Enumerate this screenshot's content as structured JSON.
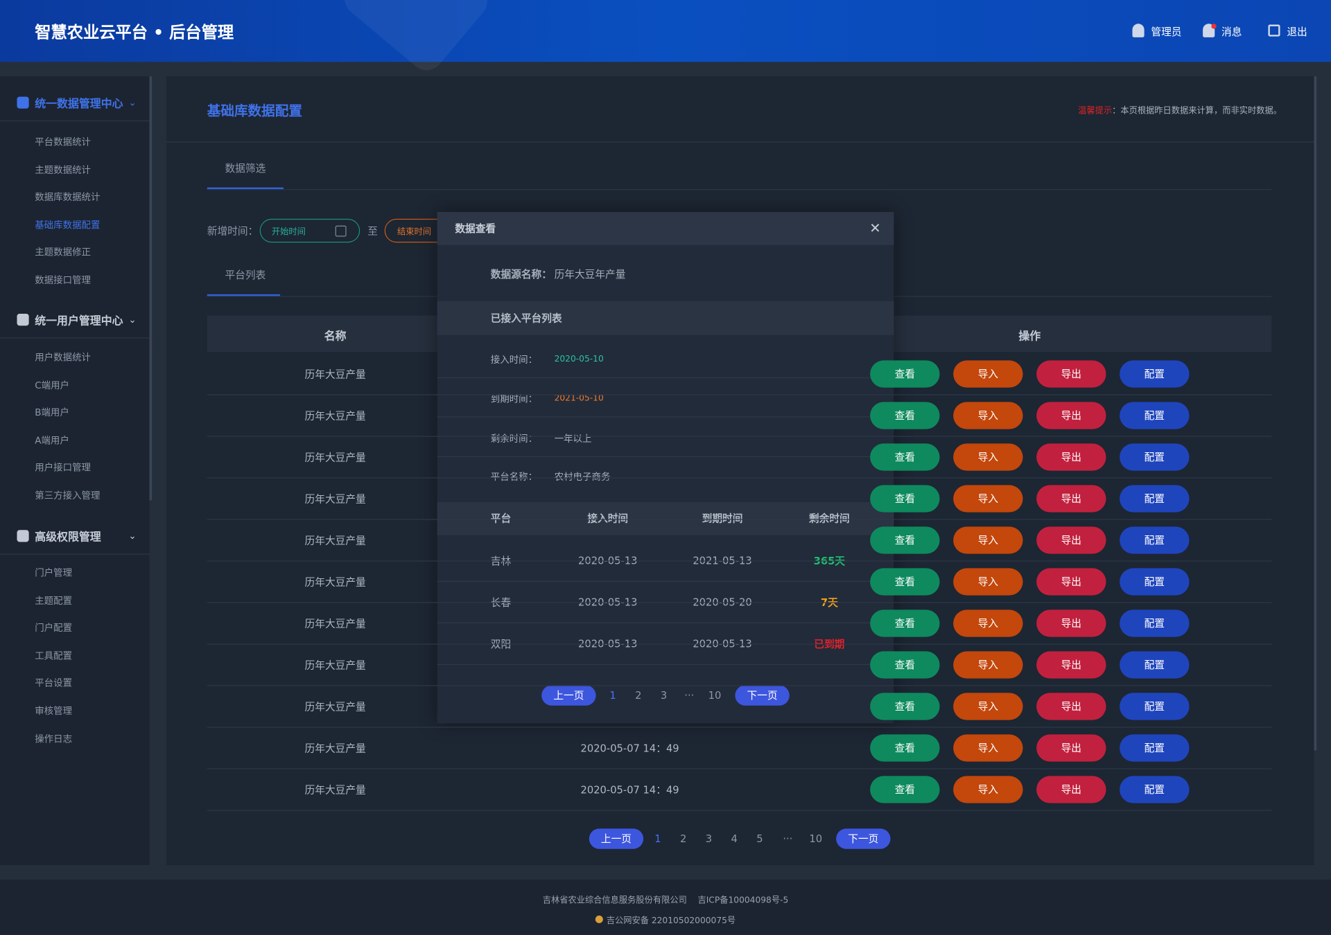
{
  "header": {
    "title": "智慧农业云平台 • 后台管理",
    "user": "管理员",
    "messages": "消息",
    "logout": "退出"
  },
  "sidebar": [
    {
      "title": "统一数据管理中心",
      "items": [
        "平台数据统计",
        "主题数据统计",
        "数据库数据统计",
        "基础库数据配置",
        "主题数据修正",
        "数据接口管理"
      ]
    },
    {
      "title": "统一用户管理中心",
      "items": [
        "用户数据统计",
        "C端用户",
        "B端用户",
        "A端用户",
        "用户接口管理",
        "第三方接入管理"
      ]
    },
    {
      "title": "高级权限管理",
      "items": [
        "门户管理",
        "主题配置",
        "门户配置",
        "工具配置",
        "平台设置",
        "审核管理",
        "操作日志"
      ]
    }
  ],
  "page": {
    "title": "基础库数据配置",
    "notice_label": "温馨提示",
    "notice": "：本页根据昨日数据来计算，而非实时数据。",
    "filter_tab": "数据筛选",
    "filter_label": "新增时间：",
    "start": "开始时间",
    "to": "至",
    "end": "结束时间",
    "list_tab": "平台列表"
  },
  "table": {
    "headers": [
      "名称",
      "操作"
    ],
    "actions": [
      "查看",
      "导入",
      "导出",
      "配置"
    ],
    "rows": [
      {
        "name": "历年大豆产量"
      },
      {
        "name": "历年大豆产量"
      },
      {
        "name": "历年大豆产量"
      },
      {
        "name": "历年大豆产量"
      },
      {
        "name": "历年大豆产量"
      },
      {
        "name": "历年大豆产量"
      },
      {
        "name": "历年大豆产量"
      },
      {
        "name": "历年大豆产量"
      },
      {
        "name": "历年大豆产量"
      },
      {
        "name": "历年大豆产量",
        "time": "2020-05-07  14：49"
      },
      {
        "name": "历年大豆产量",
        "time": "2020-05-07  14：49"
      }
    ],
    "pagination": [
      "上一页",
      "1",
      "2",
      "3",
      "4",
      "5",
      "···",
      "10",
      "下一页"
    ]
  },
  "modal": {
    "title": "数据查看",
    "source_label": "数据源名称：",
    "source": "历年大豆年产量",
    "section": "已接入平台列表",
    "fields": [
      {
        "label": "接入时间：",
        "value": "2020-05-10"
      },
      {
        "label": "到期时间：",
        "value": "2021-05-10"
      },
      {
        "label": "剩余时间：",
        "value": "一年以上"
      },
      {
        "label": "平台名称：",
        "value": "农村电子商务"
      }
    ],
    "headers": [
      "平台",
      "接入时间",
      "到期时间",
      "剩余时间"
    ],
    "rows": [
      [
        "吉林",
        "2020-05-13",
        "2021-05-13",
        "365天"
      ],
      [
        "长春",
        "2020-05-13",
        "2020-05-20",
        "7天"
      ],
      [
        "双阳",
        "2020-05-13",
        "2020-05-13",
        "已到期"
      ]
    ],
    "pagination": [
      "上一页",
      "1",
      "2",
      "3",
      "···",
      "10",
      "下一页"
    ]
  },
  "footer": {
    "company": "吉林省农业综合信息服务股份有限公司",
    "icp": "吉ICP备10004098号-5",
    "police": "吉公网安备 22010502000075号"
  }
}
